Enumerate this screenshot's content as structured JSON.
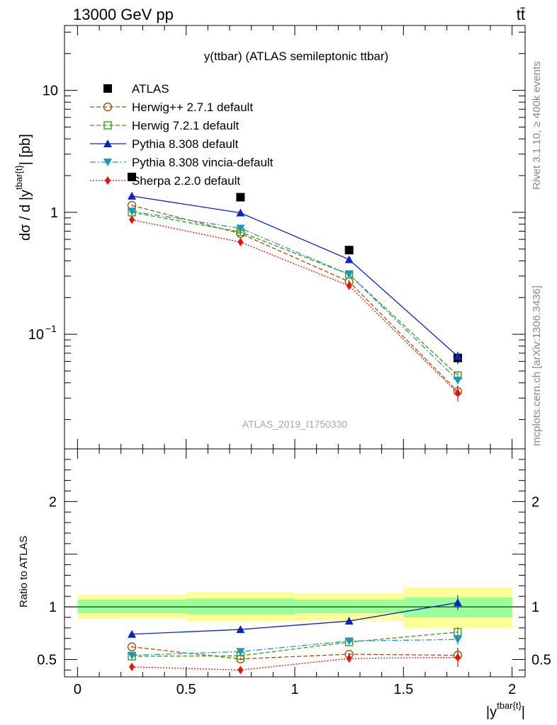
{
  "header": {
    "left": "13000 GeV pp",
    "right": "tt̄"
  },
  "side_labels": {
    "rivet": "Rivet 3.1.10, ≥ 400k events",
    "mcplots": "mcplots.cern.ch [arXiv:1306.3436]"
  },
  "chart_data": [
    {
      "type": "line",
      "title": "y(ttbar) (ATLAS semileptonic ttbar)",
      "watermark": "ATLAS_2019_I1750330",
      "ylabel": "dσ / d |y^{tbar{t}}| [pb]",
      "yscale": "log",
      "xlim": [
        -0.06,
        2.06
      ],
      "ylim": [
        0.0115,
        34
      ],
      "y_ticks": [
        {
          "value": 10,
          "label": "10"
        },
        {
          "value": 1,
          "label": "1"
        },
        {
          "value": 0.1,
          "label": "10",
          "exp": "−1"
        }
      ],
      "legend_position": "top-left",
      "x": [
        0.25,
        0.75,
        1.25,
        1.75
      ],
      "series": [
        {
          "name": "ATLAS",
          "color": "#000000",
          "marker": "square-filled",
          "line": "none",
          "values": [
            1.95,
            1.33,
            0.49,
            0.064
          ],
          "errors": [
            0.08,
            0.06,
            0.03,
            0.007
          ]
        },
        {
          "name": "Herwig++ 2.7.1 default",
          "color": "#a0520e",
          "marker": "circle-open",
          "line": "dashed",
          "values": [
            1.14,
            0.67,
            0.27,
            0.034
          ],
          "errors": [
            0.02,
            0.015,
            0.008,
            0.004
          ]
        },
        {
          "name": "Herwig 7.2.1 default",
          "color": "#3c9a1a",
          "marker": "square-open",
          "line": "dashed",
          "values": [
            1.0,
            0.69,
            0.31,
            0.046
          ],
          "errors": [
            0.02,
            0.015,
            0.008,
            0.003
          ]
        },
        {
          "name": "Pythia 8.308 default",
          "color": "#0a22c8",
          "marker": "triangle-up-filled",
          "line": "solid",
          "values": [
            1.36,
            0.99,
            0.41,
            0.066
          ],
          "errors": [
            0.02,
            0.02,
            0.01,
            0.006
          ]
        },
        {
          "name": "Pythia 8.308 vincia-default",
          "color": "#1b9ab8",
          "marker": "triangle-down-filled",
          "line": "dashdot",
          "values": [
            1.02,
            0.74,
            0.31,
            0.042
          ],
          "errors": [
            0.02,
            0.015,
            0.008,
            0.003
          ]
        },
        {
          "name": "Sherpa 2.2.0 default",
          "color": "#e8120c",
          "marker": "diamond-filled",
          "line": "dotted",
          "values": [
            0.87,
            0.57,
            0.25,
            0.033
          ],
          "errors": [
            0.02,
            0.015,
            0.01,
            0.005
          ]
        }
      ]
    },
    {
      "type": "line",
      "ylabel": "Ratio to ATLAS",
      "xlabel": "|y^{tbar{t}}|",
      "xlim": [
        -0.06,
        2.06
      ],
      "ylim": [
        0.335,
        2.5
      ],
      "x_ticks": [
        {
          "value": 0,
          "label": "0"
        },
        {
          "value": 0.5,
          "label": "0.5"
        },
        {
          "value": 1,
          "label": "1"
        },
        {
          "value": 1.5,
          "label": "1.5"
        },
        {
          "value": 2,
          "label": "2"
        }
      ],
      "y_ticks": [
        {
          "value": 0.5,
          "label": "0.5"
        },
        {
          "value": 1,
          "label": "1"
        },
        {
          "value": 2,
          "label": "2"
        }
      ],
      "bins": [
        [
          0,
          0.5
        ],
        [
          0.5,
          1
        ],
        [
          1,
          1.5
        ],
        [
          1.5,
          2
        ]
      ],
      "band_inner": [
        [
          0.94,
          1.07
        ],
        [
          0.93,
          1.08
        ],
        [
          0.94,
          1.07
        ],
        [
          0.9,
          1.09
        ]
      ],
      "band_outer": [
        [
          0.89,
          1.12
        ],
        [
          0.86,
          1.14
        ],
        [
          0.87,
          1.13
        ],
        [
          0.8,
          1.19
        ]
      ],
      "x": [
        0.25,
        0.75,
        1.25,
        1.75
      ],
      "series": [
        {
          "name": "Herwig++ 2.7.1 default",
          "color": "#a0520e",
          "marker": "circle-open",
          "line": "dashed",
          "values": [
            0.62,
            0.505,
            0.55,
            0.54
          ],
          "errors": [
            0.01,
            0.012,
            0.015,
            0.07
          ]
        },
        {
          "name": "Herwig 7.2.1 default",
          "color": "#3c9a1a",
          "marker": "square-open",
          "line": "dashed",
          "values": [
            0.53,
            0.535,
            0.665,
            0.76
          ],
          "errors": [
            0.01,
            0.012,
            0.015,
            0.05
          ]
        },
        {
          "name": "Pythia 8.308 default",
          "color": "#0a22c8",
          "marker": "triangle-up-filled",
          "line": "solid",
          "values": [
            0.74,
            0.785,
            0.865,
            1.04
          ],
          "errors": [
            0.01,
            0.012,
            0.02,
            0.07
          ]
        },
        {
          "name": "Pythia 8.308 vincia-default",
          "color": "#1b9ab8",
          "marker": "triangle-down-filled",
          "line": "dashdot",
          "values": [
            0.54,
            0.575,
            0.675,
            0.69
          ],
          "errors": [
            0.01,
            0.012,
            0.015,
            0.05
          ]
        },
        {
          "name": "Sherpa 2.2.0 default",
          "color": "#e8120c",
          "marker": "diamond-filled",
          "line": "dotted",
          "values": [
            0.43,
            0.4,
            0.51,
            0.52
          ],
          "errors": [
            0.01,
            0.012,
            0.025,
            0.09
          ]
        }
      ]
    }
  ]
}
